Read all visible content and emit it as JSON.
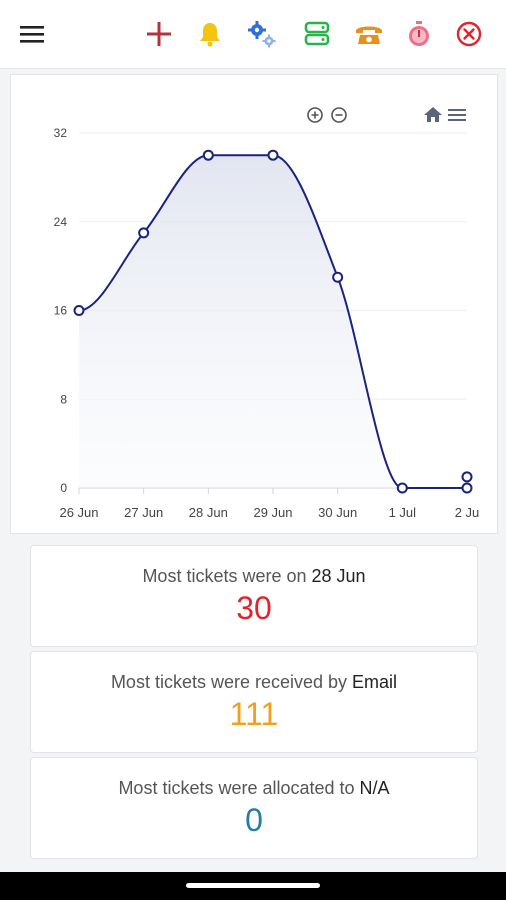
{
  "toolbar": {
    "icons": [
      "menu-icon",
      "plus-icon",
      "bell-icon",
      "gears-icon",
      "server-icon",
      "phone-icon",
      "stopwatch-icon",
      "close-circle-icon"
    ],
    "colors": {
      "plus": "#b5343c",
      "bell": "#f2c511",
      "gears": "#2f6fd6",
      "server": "#2bb24c",
      "phone": "#e8901a",
      "stopwatch": "#ee6f86",
      "close": "#e0242f"
    }
  },
  "chart_data": {
    "type": "line",
    "categories": [
      "26 Jun",
      "27 Jun",
      "28 Jun",
      "29 Jun",
      "30 Jun",
      "1 Jul",
      "2 Ju"
    ],
    "series": [
      {
        "values": [
          16,
          23,
          30,
          30,
          19,
          0,
          0
        ]
      }
    ],
    "extra_points": [
      {
        "x": "2 Ju",
        "y": 1
      }
    ],
    "yticks": [
      0,
      8,
      16,
      24,
      32
    ],
    "ylim": [
      0,
      32
    ],
    "grid": true,
    "color": "#1a237e",
    "toolbar_icons": [
      "zoom-in-icon",
      "zoom-out-icon",
      "home-icon",
      "hamburger-icon"
    ]
  },
  "stats": [
    {
      "prefix": "Most tickets were on ",
      "highlight": "28 Jun",
      "value": "30",
      "color": "#e0242f"
    },
    {
      "prefix": "Most tickets were received by ",
      "highlight": "Email",
      "value": "111",
      "color": "#f0a01c"
    },
    {
      "prefix": "Most tickets were allocated to ",
      "highlight": "N/A",
      "value": "0",
      "color": "#1f7fa8"
    }
  ]
}
